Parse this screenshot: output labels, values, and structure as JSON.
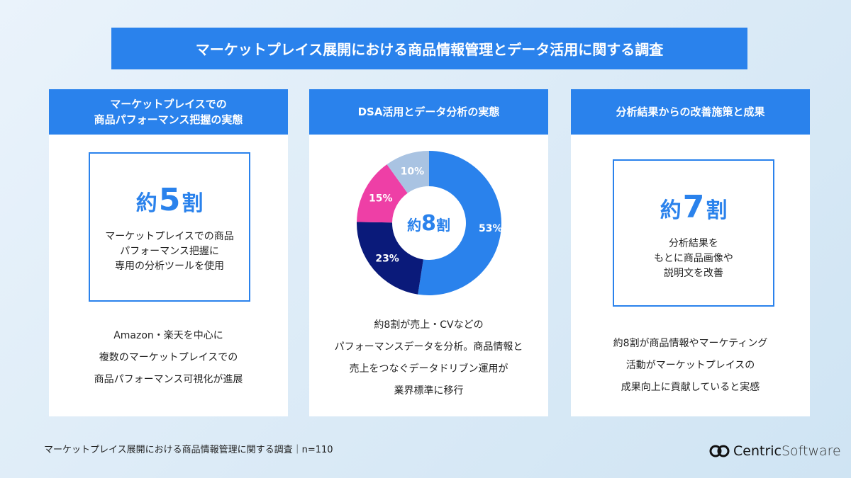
{
  "title": "マーケットプレイス展開における商品情報管理とデータ活用に関する調査",
  "panels": [
    {
      "header": [
        "マーケットプレイスでの",
        "商品パフォーマンス把握の実態"
      ],
      "stat": {
        "prefix": "約",
        "num": "5",
        "suffix": "割"
      },
      "stat_text": [
        "マーケットプレイスでの商品",
        "パフォーマンス把握に",
        "専用の分析ツールを使用"
      ],
      "desc": [
        "Amazon・楽天を中心に",
        "複数のマーケットプレイスでの",
        "商品パフォーマンス可視化が進展"
      ]
    },
    {
      "header": [
        "DSA活用とデータ分析の実態"
      ],
      "desc": [
        "約8割が売上・CVなどの",
        "パフォーマンスデータを分析。商品情報と",
        "売上をつなぐデータドリブン運用が",
        "業界標準に移行"
      ]
    },
    {
      "header": [
        "分析結果からの改善施策と成果"
      ],
      "stat": {
        "prefix": "約",
        "num": "7",
        "suffix": "割"
      },
      "stat_text": [
        "分析結果を",
        "もとに商品画像や",
        "説明文を改善"
      ],
      "desc": [
        "約8割が商品情報やマーケティング",
        "活動がマーケットプレイスの",
        "成果向上に貢献していると実感"
      ]
    }
  ],
  "chart_data": {
    "type": "pie",
    "variant": "donut",
    "center_label": {
      "prefix": "約",
      "num": "8",
      "suffix": "割"
    },
    "slices": [
      {
        "label": "53%",
        "value": 53,
        "color": "#2a82ec"
      },
      {
        "label": "23%",
        "value": 23,
        "color": "#0a1a7a"
      },
      {
        "label": "15%",
        "value": 15,
        "color": "#ee3fa6"
      },
      {
        "label": "10%",
        "value": 10,
        "color": "#a9c3e2"
      }
    ]
  },
  "footer": "マーケットプレイス展開における商品情報管理に関する調査｜n=110",
  "logo": {
    "text1": "Centric",
    "text2": "Software"
  }
}
